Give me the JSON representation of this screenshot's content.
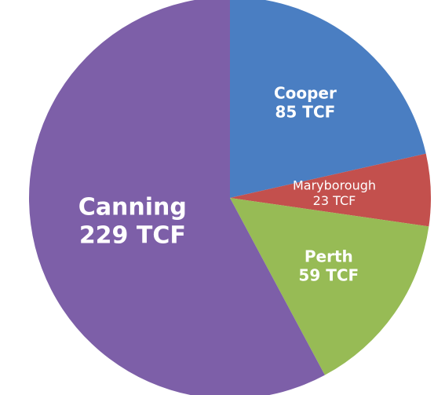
{
  "chart_data": {
    "type": "pie",
    "categories": [
      "Cooper",
      "Maryborough",
      "Perth",
      "Canning"
    ],
    "values": [
      85,
      23,
      59,
      229
    ],
    "value_labels": [
      "85 TCF",
      "23 TCF",
      "59 TCF",
      "229 TCF"
    ],
    "colors": [
      "#4a7ec2",
      "#c3504d",
      "#97bb55",
      "#7d5fa8"
    ]
  }
}
